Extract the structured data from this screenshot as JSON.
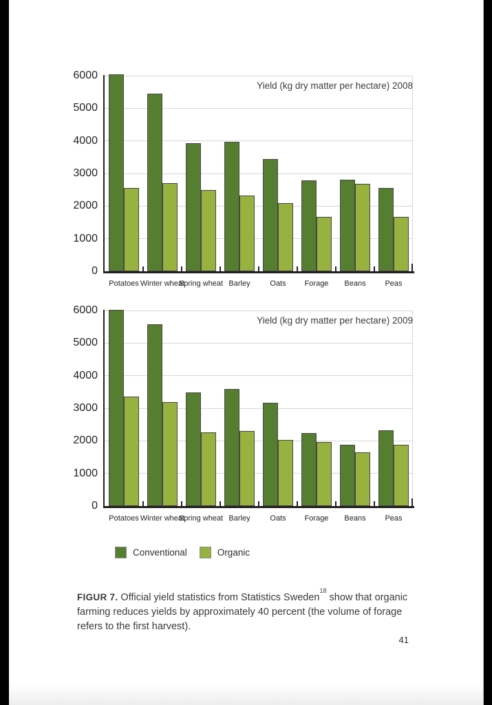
{
  "page": {
    "number": "41"
  },
  "caption": {
    "label": "FIGUR 7.",
    "text_before_sup": " Official yield statistics from Statistics Sweden",
    "superscript": "18",
    "text_after_sup": " show that organic farming reduces yields by approximately 40 percent (the volume of forage refers to the first harvest)."
  },
  "legend": {
    "items": [
      {
        "label": "Conventional",
        "color": "#567e31"
      },
      {
        "label": "Organic",
        "color": "#97b23f"
      }
    ]
  },
  "chart_data": [
    {
      "type": "bar",
      "title": "Yield (kg dry matter per hectare) 2008",
      "categories": [
        "Potatoes",
        "Winter wheat",
        "Spring wheat",
        "Barley",
        "Oats",
        "Forage",
        "Beans",
        "Peas"
      ],
      "series": [
        {
          "name": "Conventional",
          "color": "#567e31",
          "values": [
            6050,
            5450,
            3940,
            3970,
            3450,
            2780,
            2810,
            2550
          ]
        },
        {
          "name": "Organic",
          "color": "#97b23f",
          "values": [
            2550,
            2700,
            2490,
            2330,
            2100,
            1670,
            2680,
            1670
          ]
        }
      ],
      "xlabel": "",
      "ylabel": "",
      "ylim": [
        0,
        6000
      ],
      "yticks": [
        0,
        1000,
        2000,
        3000,
        4000,
        5000,
        6000
      ],
      "grid": true,
      "legend_position": "below charts, shared"
    },
    {
      "type": "bar",
      "title": "Yield (kg dry matter per hectare) 2009",
      "categories": [
        "Potatoes",
        "Winter wheat",
        "Spring wheat",
        "Barley",
        "Oats",
        "Forage",
        "Beans",
        "Peas"
      ],
      "series": [
        {
          "name": "Conventional",
          "color": "#567e31",
          "values": [
            6030,
            5570,
            3480,
            3590,
            3170,
            2240,
            1880,
            2320
          ]
        },
        {
          "name": "Organic",
          "color": "#97b23f",
          "values": [
            3370,
            3190,
            2260,
            2300,
            2030,
            1960,
            1640,
            1880
          ]
        }
      ],
      "xlabel": "",
      "ylabel": "",
      "ylim": [
        0,
        6000
      ],
      "yticks": [
        0,
        1000,
        2000,
        3000,
        4000,
        5000,
        6000
      ],
      "grid": true,
      "legend_position": "below charts, shared"
    }
  ]
}
